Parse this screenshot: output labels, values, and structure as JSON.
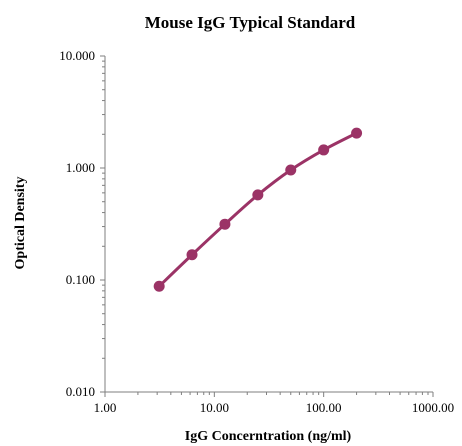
{
  "chart_data": {
    "type": "line",
    "title": "Mouse IgG Typical Standard",
    "xlabel": "IgG Concerntration (ng/ml)",
    "ylabel": "Optical Density",
    "x_scale": "log",
    "y_scale": "log",
    "xlim": [
      1,
      1000
    ],
    "ylim": [
      0.01,
      10
    ],
    "x_ticks": [
      "1.00",
      "10.00",
      "100.00",
      "1000.00"
    ],
    "y_ticks": [
      "0.010",
      "0.100",
      "1.000",
      "10.000"
    ],
    "grid": false,
    "legend": "none",
    "series": [
      {
        "color": "#9b3366",
        "x": [
          3.13,
          6.25,
          12.5,
          25,
          50,
          100,
          200
        ],
        "y": [
          0.088,
          0.168,
          0.315,
          0.575,
          0.96,
          1.45,
          2.05
        ]
      }
    ]
  }
}
